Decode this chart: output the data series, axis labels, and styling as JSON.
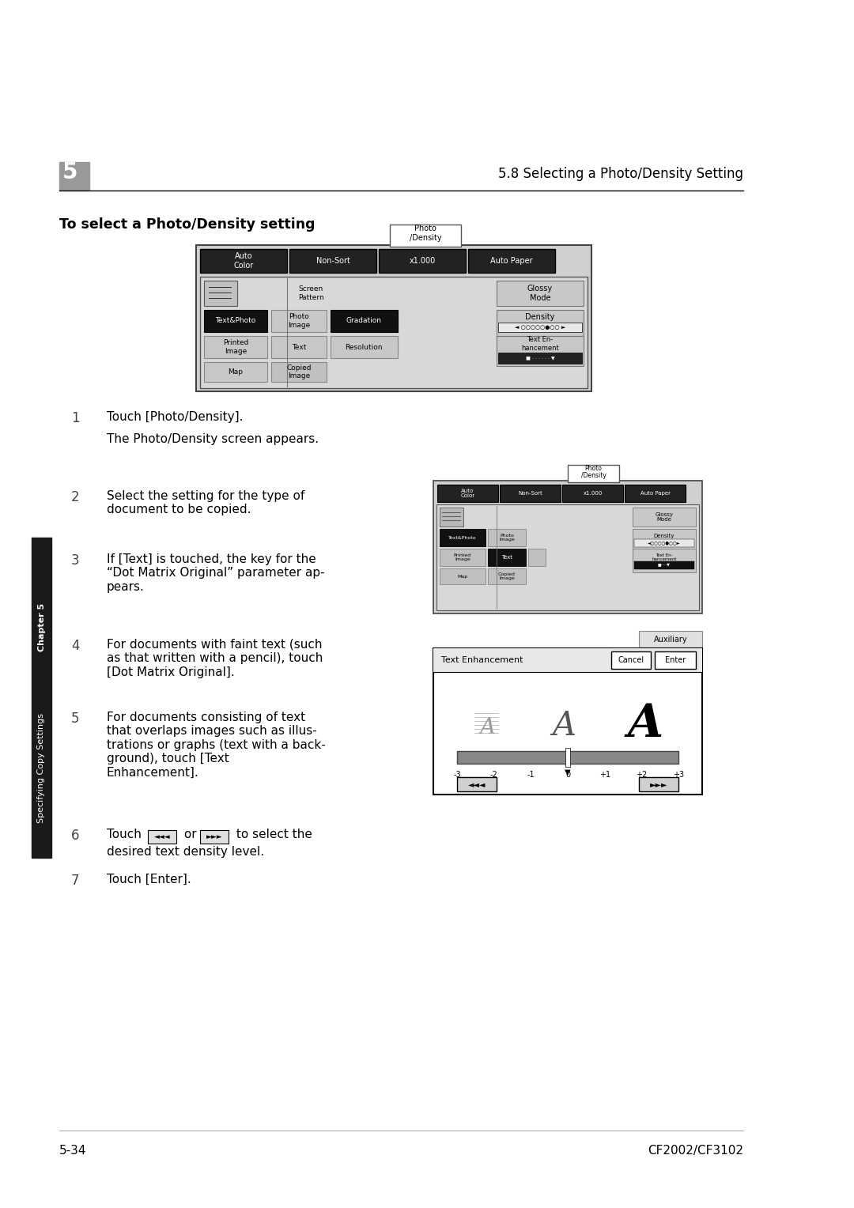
{
  "page_bg": "#ffffff",
  "chapter_num": "5",
  "header_right": "5.8 Selecting a Photo/Density Setting",
  "section_title": "To select a Photo/Density setting",
  "step1_text": "Touch [Photo/Density].",
  "step1_sub": "The Photo/Density screen appears.",
  "step2_text": "Select the setting for the type of\ndocument to be copied.",
  "step3_text": "If [Text] is touched, the key for the\n“Dot Matrix Original” parameter ap-\npears.",
  "step4_text": "For documents with faint text (such\nas that written with a pencil), touch\n[Dot Matrix Original].",
  "step5_text": "For documents consisting of text\nthat overlaps images such as illus-\ntrations or graphs (text with a back-\nground), touch [Text\nEnhancement].",
  "step6_pre": "Touch ",
  "step6_post": " to select the\ndesired text density level.",
  "step7_text": "Touch [Enter].",
  "footer_left": "5-34",
  "footer_right": "CF2002/CF3102",
  "sidebar_top_text": "Chapter 5",
  "sidebar_bot_text": "Specifying Copy Settings",
  "sidebar_bg": "#1a1a1a"
}
